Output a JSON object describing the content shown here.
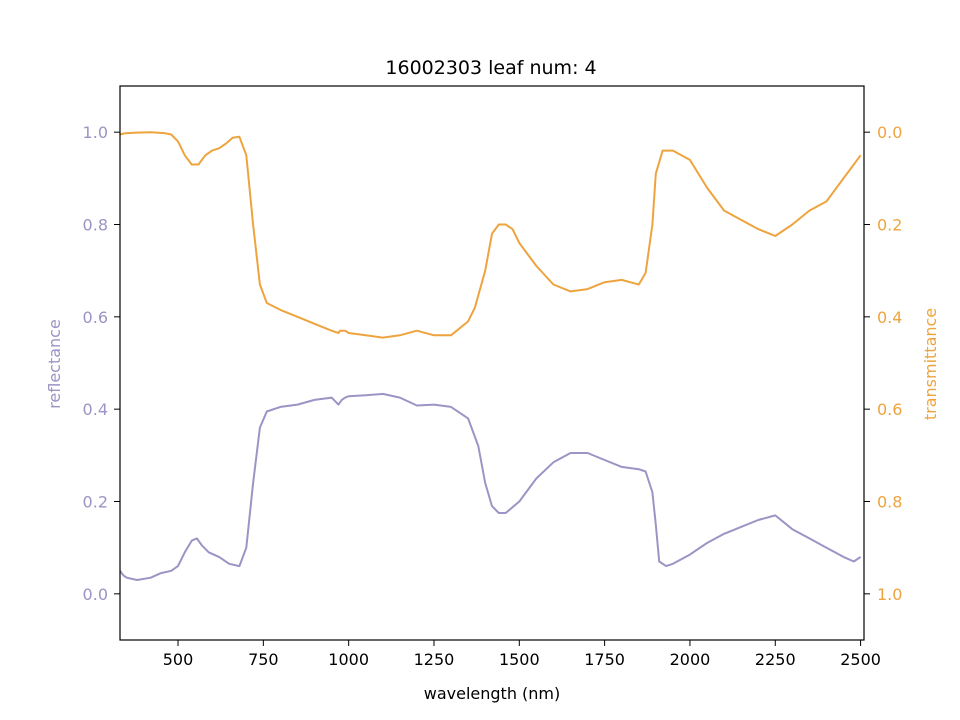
{
  "chart_data": {
    "type": "line",
    "title": "16002303 leaf num: 4",
    "xlabel": "wavelength (nm)",
    "ylabel_left": "reflectance",
    "ylabel_right": "transmittance",
    "xlim": [
      330,
      2510
    ],
    "ylim_left": [
      -0.1,
      1.1
    ],
    "ylim_right_inverted": [
      1.1,
      -0.1
    ],
    "x_ticks": [
      500,
      750,
      1000,
      1250,
      1500,
      1750,
      2000,
      2250,
      2500
    ],
    "y_left_ticks": [
      0.0,
      0.2,
      0.4,
      0.6,
      0.8,
      1.0
    ],
    "y_right_ticks": [
      0.0,
      0.2,
      0.4,
      0.6,
      0.8,
      1.0
    ],
    "grid": false,
    "colors": {
      "reflectance": "#9b94c5",
      "transmittance": "#eea43e"
    },
    "series": [
      {
        "axis": "left",
        "x": [
          330,
          340,
          350,
          380,
          420,
          450,
          480,
          500,
          520,
          540,
          555,
          570,
          590,
          620,
          650,
          680,
          700,
          720,
          740,
          760,
          800,
          850,
          900,
          950,
          970,
          980,
          990,
          1000,
          1050,
          1100,
          1150,
          1200,
          1250,
          1300,
          1350,
          1380,
          1400,
          1420,
          1440,
          1460,
          1500,
          1550,
          1600,
          1650,
          1700,
          1750,
          1800,
          1850,
          1870,
          1890,
          1900,
          1910,
          1930,
          1950,
          2000,
          2050,
          2100,
          2150,
          2200,
          2250,
          2300,
          2350,
          2400,
          2450,
          2480,
          2500
        ],
        "y": [
          0.05,
          0.04,
          0.035,
          0.03,
          0.035,
          0.045,
          0.05,
          0.06,
          0.09,
          0.115,
          0.12,
          0.105,
          0.09,
          0.08,
          0.065,
          0.06,
          0.1,
          0.24,
          0.36,
          0.395,
          0.405,
          0.41,
          0.42,
          0.425,
          0.41,
          0.42,
          0.425,
          0.428,
          0.43,
          0.433,
          0.425,
          0.408,
          0.41,
          0.405,
          0.38,
          0.32,
          0.24,
          0.19,
          0.175,
          0.175,
          0.2,
          0.25,
          0.285,
          0.305,
          0.305,
          0.29,
          0.275,
          0.27,
          0.265,
          0.22,
          0.15,
          0.07,
          0.06,
          0.065,
          0.085,
          0.11,
          0.13,
          0.145,
          0.16,
          0.17,
          0.14,
          0.12,
          0.1,
          0.08,
          0.07,
          0.08
        ]
      },
      {
        "axis": "right",
        "x": [
          330,
          340,
          350,
          380,
          420,
          460,
          480,
          500,
          520,
          540,
          560,
          580,
          600,
          620,
          640,
          660,
          680,
          700,
          720,
          740,
          760,
          800,
          850,
          900,
          950,
          970,
          975,
          990,
          1000,
          1050,
          1100,
          1150,
          1200,
          1250,
          1300,
          1350,
          1370,
          1400,
          1420,
          1440,
          1460,
          1480,
          1500,
          1550,
          1600,
          1650,
          1700,
          1750,
          1800,
          1850,
          1870,
          1890,
          1900,
          1920,
          1950,
          2000,
          2050,
          2100,
          2150,
          2200,
          2250,
          2300,
          2350,
          2400,
          2450,
          2480,
          2500
        ],
        "y": [
          0.005,
          0.003,
          0.002,
          0.001,
          0.0,
          0.002,
          0.005,
          0.02,
          0.05,
          0.07,
          0.07,
          0.05,
          0.04,
          0.035,
          0.025,
          0.012,
          0.01,
          0.05,
          0.2,
          0.33,
          0.37,
          0.385,
          0.4,
          0.415,
          0.43,
          0.435,
          0.43,
          0.43,
          0.435,
          0.44,
          0.445,
          0.44,
          0.43,
          0.44,
          0.44,
          0.41,
          0.38,
          0.3,
          0.22,
          0.2,
          0.2,
          0.21,
          0.24,
          0.29,
          0.33,
          0.345,
          0.34,
          0.325,
          0.32,
          0.33,
          0.305,
          0.2,
          0.09,
          0.04,
          0.04,
          0.06,
          0.12,
          0.17,
          0.19,
          0.21,
          0.225,
          0.2,
          0.17,
          0.15,
          0.1,
          0.07,
          0.05
        ]
      }
    ]
  }
}
